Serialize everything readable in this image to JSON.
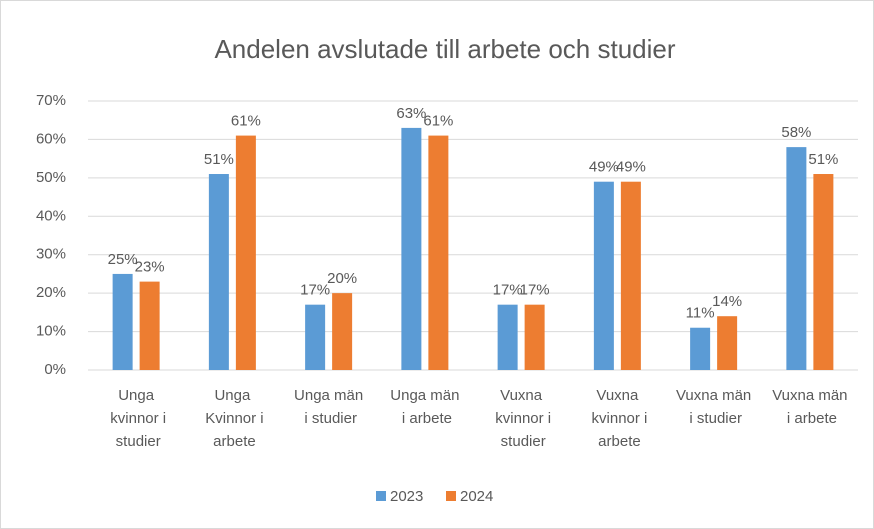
{
  "chart_data": {
    "type": "bar",
    "title": "Andelen avslutade till arbete och studier",
    "categories": [
      "Unga kvinnor i studier",
      "Unga Kvinnor i arbete",
      "Unga män i studier",
      "Unga män i arbete",
      "Vuxna kvinnor i studier",
      "Vuxna kvinnor i arbete",
      "Vuxna män i studier",
      "Vuxna män i arbete"
    ],
    "series": [
      {
        "name": "2023",
        "color": "#5b9bd5",
        "values": [
          25,
          51,
          17,
          63,
          17,
          49,
          11,
          58
        ],
        "value_labels": [
          "25%",
          "51%",
          "17%",
          "63%",
          "17%",
          "49%",
          "11%",
          "58%"
        ]
      },
      {
        "name": "2024",
        "color": "#ed7d31",
        "values": [
          23,
          61,
          20,
          61,
          17,
          49,
          14,
          51
        ],
        "value_labels": [
          "23%",
          "61%",
          "20%",
          "61%",
          "17%",
          "49%",
          "14%",
          "51%"
        ]
      }
    ],
    "ylim": [
      0,
      70
    ],
    "yticks": [
      {
        "value": 0,
        "label": "0%"
      },
      {
        "value": 10,
        "label": "10%"
      },
      {
        "value": 20,
        "label": "20%"
      },
      {
        "value": 30,
        "label": "30%"
      },
      {
        "value": 40,
        "label": "40%"
      },
      {
        "value": 50,
        "label": "50%"
      },
      {
        "value": 60,
        "label": "60%"
      },
      {
        "value": 70,
        "label": "70%"
      }
    ],
    "grid": true,
    "legend": "bottom"
  }
}
